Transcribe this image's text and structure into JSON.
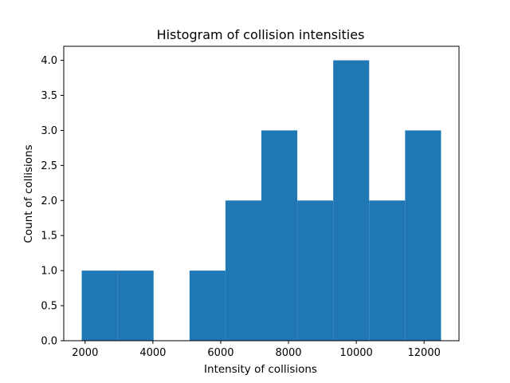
{
  "chart_data": {
    "type": "bar",
    "title": "Histogram of collision intensities",
    "xlabel": "Intensity of collisions",
    "ylabel": "Count of collisions",
    "bin_edges": [
      1900,
      2960,
      4020,
      5080,
      6140,
      7200,
      8260,
      9320,
      10380,
      11440,
      12500
    ],
    "values": [
      1,
      1,
      0,
      1,
      2,
      3,
      2,
      4,
      2,
      3
    ],
    "xlim": [
      1370,
      13030
    ],
    "ylim": [
      0,
      4.2
    ],
    "x_ticks": [
      2000,
      4000,
      6000,
      8000,
      10000,
      12000
    ],
    "y_ticks": [
      0.0,
      0.5,
      1.0,
      1.5,
      2.0,
      2.5,
      3.0,
      3.5,
      4.0
    ],
    "x_tick_labels": [
      "2000",
      "4000",
      "6000",
      "8000",
      "10000",
      "12000"
    ],
    "y_tick_labels": [
      "0.0",
      "0.5",
      "1.0",
      "1.5",
      "2.0",
      "2.5",
      "3.0",
      "3.5",
      "4.0"
    ],
    "bar_color": "#1f77b4",
    "grid": false,
    "legend": "none"
  }
}
